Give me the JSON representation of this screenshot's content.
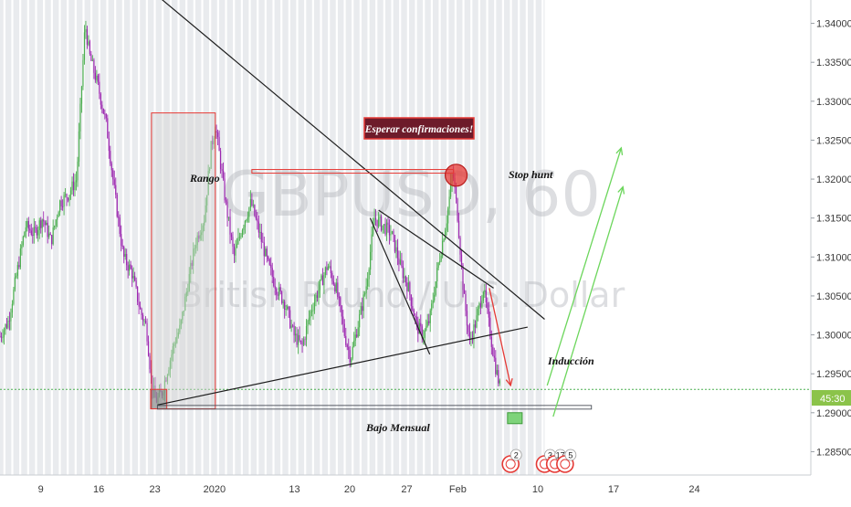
{
  "chart_data": {
    "type": "candlestick",
    "title": "",
    "watermark": {
      "symbol": "GBPUSD, 60",
      "name": "British Pound / U.S. Dollar"
    },
    "ylim": [
      1.282,
      1.343
    ],
    "yticks": [
      "1.34000",
      "1.33500",
      "1.33000",
      "1.32500",
      "1.32000",
      "1.31500",
      "1.31000",
      "1.30500",
      "1.30000",
      "1.29500",
      "1.29000",
      "1.28500"
    ],
    "ytick_values": [
      1.34,
      1.335,
      1.33,
      1.325,
      1.32,
      1.315,
      1.31,
      1.305,
      1.3,
      1.295,
      1.29,
      1.285
    ],
    "xlim": [
      0,
      1000
    ],
    "xticks": [
      {
        "label": "9",
        "x": 48
      },
      {
        "label": "16",
        "x": 116
      },
      {
        "label": "23",
        "x": 182
      },
      {
        "label": "2020",
        "x": 252
      },
      {
        "label": "13",
        "x": 346
      },
      {
        "label": "20",
        "x": 411
      },
      {
        "label": "27",
        "x": 478
      },
      {
        "label": "Feb",
        "x": 538
      },
      {
        "label": "10",
        "x": 632
      },
      {
        "label": "17",
        "x": 721
      },
      {
        "label": "24",
        "x": 816
      }
    ],
    "price_line": {
      "value": 1.293,
      "label": "45:30"
    },
    "price_path": [
      [
        0,
        1.2998
      ],
      [
        10,
        1.3018
      ],
      [
        20,
        1.308
      ],
      [
        30,
        1.314
      ],
      [
        40,
        1.313
      ],
      [
        50,
        1.315
      ],
      [
        60,
        1.312
      ],
      [
        70,
        1.317
      ],
      [
        80,
        1.318
      ],
      [
        90,
        1.32
      ],
      [
        95,
        1.33
      ],
      [
        100,
        1.34
      ],
      [
        105,
        1.336
      ],
      [
        115,
        1.332
      ],
      [
        125,
        1.327
      ],
      [
        135,
        1.318
      ],
      [
        145,
        1.31
      ],
      [
        155,
        1.308
      ],
      [
        165,
        1.303
      ],
      [
        172,
        1.301
      ],
      [
        178,
        1.294
      ],
      [
        183,
        1.2915
      ],
      [
        190,
        1.2925
      ],
      [
        198,
        1.296
      ],
      [
        205,
        1.299
      ],
      [
        212,
        1.301
      ],
      [
        220,
        1.306
      ],
      [
        230,
        1.312
      ],
      [
        240,
        1.315
      ],
      [
        248,
        1.324
      ],
      [
        253,
        1.327
      ],
      [
        258,
        1.323
      ],
      [
        265,
        1.317
      ],
      [
        275,
        1.31
      ],
      [
        285,
        1.314
      ],
      [
        295,
        1.317
      ],
      [
        305,
        1.313
      ],
      [
        315,
        1.309
      ],
      [
        325,
        1.306
      ],
      [
        335,
        1.304
      ],
      [
        345,
        1.3
      ],
      [
        355,
        1.2985
      ],
      [
        365,
        1.303
      ],
      [
        375,
        1.306
      ],
      [
        385,
        1.309
      ],
      [
        395,
        1.306
      ],
      [
        405,
        1.3
      ],
      [
        412,
        1.297
      ],
      [
        420,
        1.301
      ],
      [
        430,
        1.306
      ],
      [
        440,
        1.315
      ],
      [
        450,
        1.314
      ],
      [
        460,
        1.313
      ],
      [
        470,
        1.309
      ],
      [
        480,
        1.306
      ],
      [
        490,
        1.301
      ],
      [
        498,
        1.3
      ],
      [
        505,
        1.302
      ],
      [
        515,
        1.309
      ],
      [
        525,
        1.315
      ],
      [
        532,
        1.321
      ],
      [
        538,
        1.315
      ],
      [
        545,
        1.305
      ],
      [
        552,
        1.299
      ],
      [
        560,
        1.302
      ],
      [
        568,
        1.306
      ],
      [
        575,
        1.301
      ],
      [
        582,
        1.296
      ],
      [
        588,
        1.293
      ]
    ],
    "drawings": {
      "downtrend_line": [
        [
          180,
          1.344
        ],
        [
          640,
          1.302
        ]
      ],
      "uptrend_line": [
        [
          185,
          1.291
        ],
        [
          620,
          1.301
        ]
      ],
      "wedge_upper": [
        [
          445,
          1.316
        ],
        [
          580,
          1.306
        ]
      ],
      "wedge_lower": [
        [
          435,
          1.315
        ],
        [
          505,
          1.2975
        ]
      ],
      "bajo_mensual_line": [
        [
          185,
          1.2907
        ],
        [
          695,
          1.2907
        ]
      ],
      "stop_hunt_line": [
        [
          296,
          1.321
        ],
        [
          533,
          1.321
        ]
      ],
      "rango_box": {
        "x1": 178,
        "x2": 253,
        "y1": 1.3285,
        "y2": 1.2905
      },
      "low_box": {
        "x1": 177,
        "x2": 196,
        "y1": 1.293,
        "y2": 1.2905
      },
      "stop_hunt_circle": {
        "x": 536,
        "y": 1.3205
      },
      "induccion_arrow": [
        [
          575,
          1.306
        ],
        [
          600,
          1.2935
        ]
      ],
      "green_arrow_1": [
        [
          643,
          1.2935
        ],
        [
          730,
          1.324
        ]
      ],
      "green_arrow_2": [
        [
          650,
          1.2895
        ],
        [
          732,
          1.319
        ]
      ],
      "green_marker": {
        "x": 605,
        "y": 1.2893
      }
    },
    "annotations": {
      "esperar": "Esperar confirmaciones!",
      "stop_hunt": "Stop hunt",
      "rango": "Rango",
      "induccion": "Inducción",
      "bajo_mensual": "Bajo Mensual"
    },
    "event_badges": [
      {
        "x": 600,
        "label": "2"
      },
      {
        "x": 640,
        "label": "3"
      },
      {
        "x": 652,
        "label": "17"
      },
      {
        "x": 664,
        "label": "5"
      }
    ],
    "colors": {
      "candle_up": "#4caf50",
      "candle_down": "#9c27b0",
      "session_bg": "#e9ebee",
      "red": "#e53935",
      "green": "#6cd65c",
      "price_line": "#4caf50",
      "price_label_bg": "#8bc34a"
    }
  }
}
